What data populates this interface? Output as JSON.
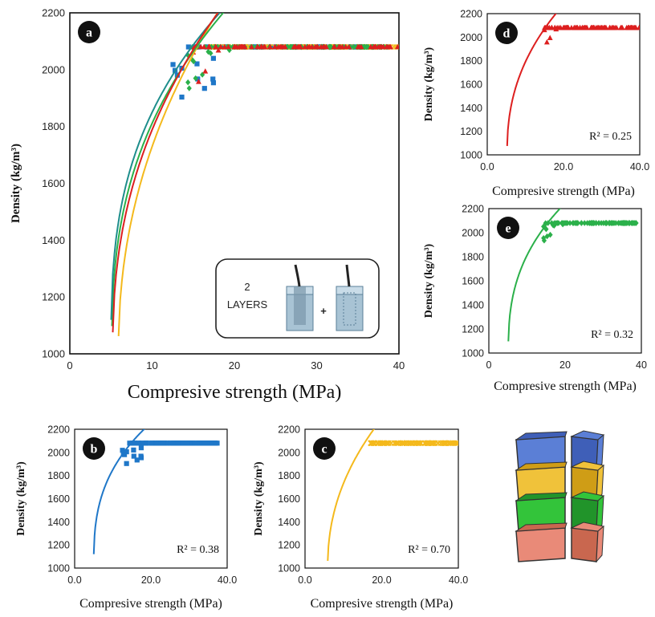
{
  "colors": {
    "red": "#dd1f1f",
    "blue": "#1f77c8",
    "yellow": "#f4b91c",
    "green": "#2bb04a",
    "darkgreen": "#1e8e8c"
  },
  "chart_data": [
    {
      "panel": "a",
      "type": "scatter",
      "xlabel": "Compresive strength (MPa)",
      "ylabel": "Density (kg/m³)",
      "xlim": [
        0,
        40
      ],
      "ylim": [
        1000,
        2200
      ],
      "xticks": [
        "0",
        "10",
        "20",
        "30",
        "40"
      ],
      "yticks": [
        "1000",
        "1200",
        "1400",
        "1600",
        "1800",
        "2000",
        "2200"
      ],
      "inset": {
        "text": [
          "2",
          "LAYERS"
        ],
        "plus": "+"
      },
      "series": [
        {
          "color": "red",
          "marker": "triangle",
          "curve": {
            "x0": 5.2,
            "a": 403,
            "b": 0.428
          }
        },
        {
          "color": "blue",
          "marker": "square",
          "curve": {
            "x0": 5.0,
            "a": 480,
            "b": 0.355
          }
        },
        {
          "color": "yellow",
          "marker": "cross",
          "curve": {
            "x0": 5.9,
            "a": 380,
            "b": 0.462
          }
        },
        {
          "color": "green",
          "marker": "diamond",
          "curve": {
            "x0": 5.1,
            "a": 440,
            "b": 0.385
          }
        }
      ]
    },
    {
      "panel": "b",
      "type": "scatter",
      "xlabel": "Compresive strength (MPa)",
      "ylabel": "Density (kg/m³)",
      "xlim": [
        0,
        40
      ],
      "ylim": [
        1000,
        2200
      ],
      "xticks": [
        "0.0",
        "20.0",
        "40.0"
      ],
      "yticks": [
        "1000",
        "1200",
        "1400",
        "1600",
        "1800",
        "2000",
        "2200"
      ],
      "annotation": "R² = 0.38",
      "color": "blue",
      "marker": "square",
      "curve": {
        "x0": 5.0,
        "a": 480,
        "b": 0.355
      }
    },
    {
      "panel": "c",
      "type": "scatter",
      "xlabel": "Compresive strength (MPa)",
      "ylabel": "Density (kg/m³)",
      "xlim": [
        0,
        40
      ],
      "ylim": [
        1000,
        2200
      ],
      "xticks": [
        "0.0",
        "20.0",
        "40.0"
      ],
      "yticks": [
        "1000",
        "1200",
        "1400",
        "1600",
        "1800",
        "2000",
        "2200"
      ],
      "annotation": "R² = 0.70",
      "color": "yellow",
      "marker": "cross",
      "curve": {
        "x0": 5.9,
        "a": 380,
        "b": 0.462
      }
    },
    {
      "panel": "d",
      "type": "scatter",
      "xlabel": "Compresive strength (MPa)",
      "ylabel": "Density (kg/m³)",
      "xlim": [
        0,
        40
      ],
      "ylim": [
        1000,
        2200
      ],
      "xticks": [
        "0.0",
        "20.0",
        "40.0"
      ],
      "yticks": [
        "1000",
        "1200",
        "1400",
        "1600",
        "1800",
        "2000",
        "2200"
      ],
      "annotation": "R² = 0.25",
      "color": "red",
      "marker": "triangle",
      "curve": {
        "x0": 5.2,
        "a": 403,
        "b": 0.428
      }
    },
    {
      "panel": "e",
      "type": "scatter",
      "xlabel": "Compresive strength (MPa)",
      "ylabel": "Density (kg/m³)",
      "xlim": [
        0,
        40
      ],
      "ylim": [
        1000,
        2200
      ],
      "xticks": [
        "0",
        "20",
        "40"
      ],
      "yticks": [
        "1000",
        "1200",
        "1400",
        "1600",
        "1800",
        "2000",
        "2200"
      ],
      "annotation": "R² = 0.32",
      "color": "green",
      "marker": "diamond",
      "curve": {
        "x0": 5.1,
        "a": 440,
        "b": 0.385
      }
    }
  ],
  "layer_illustration": {
    "layers": [
      "blue",
      "yellow",
      "green",
      "red"
    ]
  }
}
